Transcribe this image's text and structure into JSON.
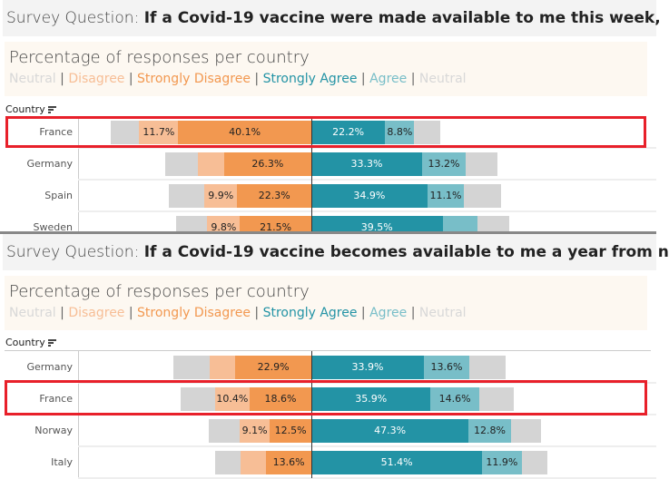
{
  "colors": {
    "neutral": "#d4d4d4",
    "disagree": "#f7be96",
    "strongly_disagree": "#f29850",
    "strongly_agree": "#2393a5",
    "agree": "#78bec8",
    "highlight": "#e8202a"
  },
  "panels": [
    {
      "question_label": "Survey Question: ",
      "question_text": "If a Covid-19 vaccine were made available to me this week,",
      "subtitle": "Percentage of responses per country",
      "legend": [
        {
          "text": "Neutral",
          "color": "#d8d8d8"
        },
        {
          "text": "Disagree",
          "color": "#f7be96"
        },
        {
          "text": "Strongly Disagree",
          "color": "#f29850"
        },
        {
          "text": "Strongly Agree",
          "color": "#2393a5"
        },
        {
          "text": "Agree",
          "color": "#78bec8"
        },
        {
          "text": "Neutral",
          "color": "#d8d8d8"
        }
      ],
      "country_header": "Country",
      "highlighted": "France",
      "rows": [
        {
          "country": "France",
          "neutral_left": 8.7,
          "disagree": 11.7,
          "strongly_disagree": 40.1,
          "strongly_agree": 22.2,
          "agree": 8.8,
          "neutral_right": 7.9,
          "labels": {
            "disagree": "11.7%",
            "strongly_disagree": "40.1%",
            "strongly_agree": "22.2%",
            "agree": "8.8%"
          }
        },
        {
          "country": "Germany",
          "neutral_left": 9.8,
          "disagree": 7.9,
          "strongly_disagree": 26.3,
          "strongly_agree": 33.3,
          "agree": 13.2,
          "neutral_right": 9.6,
          "labels": {
            "strongly_disagree": "26.3%",
            "strongly_agree": "33.3%",
            "agree": "13.2%"
          }
        },
        {
          "country": "Spain",
          "neutral_left": 10.7,
          "disagree": 9.9,
          "strongly_disagree": 22.3,
          "strongly_agree": 34.9,
          "agree": 11.1,
          "neutral_right": 11.2,
          "labels": {
            "disagree": "9.9%",
            "strongly_disagree": "22.3%",
            "strongly_agree": "34.9%",
            "agree": "11.1%"
          }
        },
        {
          "country": "Sweden",
          "neutral_left": 9.3,
          "disagree": 9.8,
          "strongly_disagree": 21.5,
          "strongly_agree": 39.5,
          "agree": 10.4,
          "neutral_right": 9.6,
          "labels": {
            "disagree": "9.8%",
            "strongly_disagree": "21.5%",
            "strongly_agree": "39.5%"
          }
        }
      ]
    },
    {
      "question_label": "Survey Question: ",
      "question_text": "If a Covid-19 vaccine becomes available to me a year from n",
      "subtitle": "Percentage of responses per country",
      "legend": [
        {
          "text": "Neutral",
          "color": "#d8d8d8"
        },
        {
          "text": "Disagree",
          "color": "#f7be96"
        },
        {
          "text": "Strongly Disagree",
          "color": "#f29850"
        },
        {
          "text": "Strongly Agree",
          "color": "#2393a5"
        },
        {
          "text": "Agree",
          "color": "#78bec8"
        },
        {
          "text": "Neutral",
          "color": "#d8d8d8"
        }
      ],
      "country_header": "Country",
      "highlighted": "France",
      "rows": [
        {
          "country": "Germany",
          "neutral_left": 10.9,
          "disagree": 7.6,
          "strongly_disagree": 22.9,
          "strongly_agree": 33.9,
          "agree": 13.6,
          "neutral_right": 10.9,
          "labels": {
            "strongly_disagree": "22.9%",
            "strongly_agree": "33.9%",
            "agree": "13.6%"
          }
        },
        {
          "country": "France",
          "neutral_left": 10.4,
          "disagree": 10.4,
          "strongly_disagree": 18.6,
          "strongly_agree": 35.9,
          "agree": 14.6,
          "neutral_right": 10.4,
          "labels": {
            "disagree": "10.4%",
            "strongly_disagree": "18.6%",
            "strongly_agree": "35.9%",
            "agree": "14.6%"
          }
        },
        {
          "country": "Norway",
          "neutral_left": 9.3,
          "disagree": 9.1,
          "strongly_disagree": 12.5,
          "strongly_agree": 47.3,
          "agree": 12.8,
          "neutral_right": 9.0,
          "labels": {
            "disagree": "9.1%",
            "strongly_disagree": "12.5%",
            "strongly_agree": "47.3%",
            "agree": "12.8%"
          }
        },
        {
          "country": "Italy",
          "neutral_left": 7.7,
          "disagree": 7.6,
          "strongly_disagree": 13.6,
          "strongly_agree": 51.4,
          "agree": 11.9,
          "neutral_right": 7.7,
          "labels": {
            "strongly_disagree": "13.6%",
            "strongly_agree": "51.4%",
            "agree": "11.9%"
          }
        }
      ]
    }
  ]
}
